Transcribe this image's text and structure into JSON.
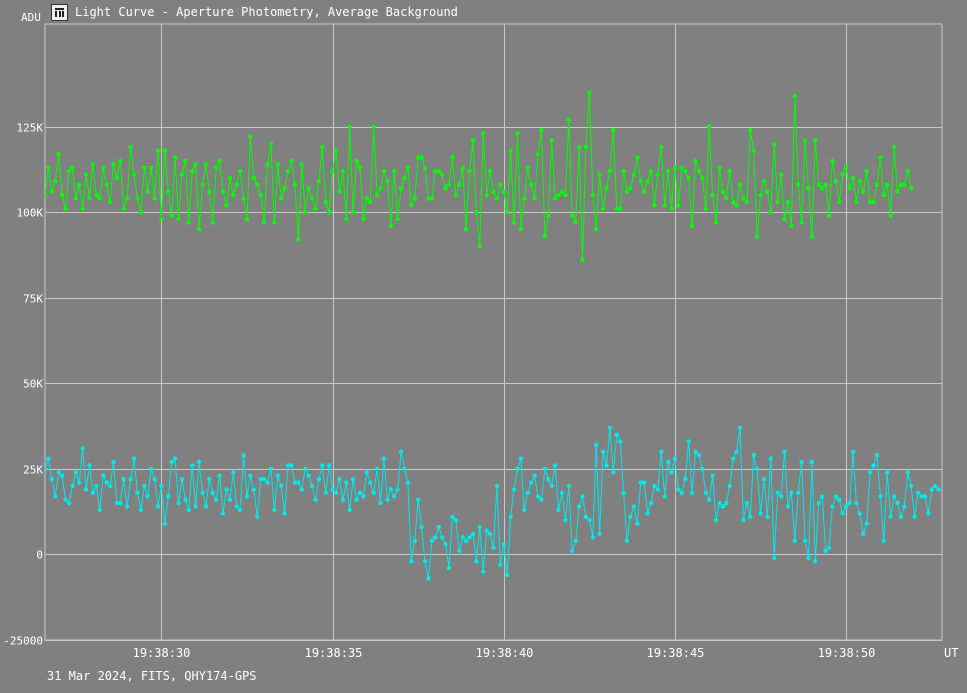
{
  "window": {
    "title": "Light Curve - Aperture Photometry, Average Background",
    "icon": "app-logo-icon"
  },
  "footer": {
    "info": "31 Mar 2024, FITS, QHY174-GPS"
  },
  "colors": {
    "background": "#808080",
    "grid": "#c8c8c8",
    "series_target": "#00ff00",
    "series_comparison": "#00e8e8"
  },
  "chart_data": {
    "type": "line",
    "title": "",
    "xlabel": "UT",
    "ylabel": "ADU",
    "grid": true,
    "xlim": [
      26.6,
      52.8
    ],
    "ylim": [
      -25000,
      155000
    ],
    "x_ticks": [
      30,
      35,
      40,
      45,
      50
    ],
    "x_tick_labels": [
      "19:38:30",
      "19:38:35",
      "19:38:40",
      "19:38:45",
      "19:38:50"
    ],
    "y_ticks": [
      -25000,
      0,
      25000,
      50000,
      75000,
      100000,
      125000
    ],
    "y_tick_labels": [
      "-25000",
      "0",
      "25K",
      "50K",
      "75K",
      "100K",
      "125K"
    ],
    "x_start": 26.6,
    "x_step": 0.1,
    "series": [
      {
        "color": "#00ff00",
        "values": [
          105000,
          113000,
          106000,
          109000,
          117000,
          105000,
          101000,
          112000,
          113000,
          104000,
          108000,
          101000,
          111000,
          104000,
          114000,
          105000,
          104000,
          113000,
          108000,
          103000,
          114000,
          110000,
          115000,
          101000,
          104000,
          119000,
          111000,
          104000,
          100000,
          113000,
          106000,
          113000,
          104000,
          118000,
          98000,
          118000,
          106000,
          99000,
          116000,
          98000,
          111000,
          115000,
          97000,
          112000,
          114000,
          95000,
          108000,
          114000,
          106000,
          97000,
          113000,
          115000,
          106000,
          102000,
          110000,
          105000,
          108000,
          112000,
          104000,
          98000,
          122000,
          110000,
          108000,
          105000,
          97000,
          114000,
          120000,
          97000,
          114000,
          104000,
          107000,
          112000,
          115000,
          108000,
          92000,
          114000,
          100000,
          107000,
          104000,
          101000,
          109000,
          119000,
          103000,
          100000,
          112000,
          118000,
          106000,
          112000,
          98000,
          125000,
          100000,
          115000,
          113000,
          98000,
          104000,
          103000,
          125000,
          105000,
          107000,
          112000,
          109000,
          96000,
          112000,
          98000,
          107000,
          110000,
          113000,
          102000,
          104000,
          116000,
          116000,
          113000,
          104000,
          104000,
          112000,
          112000,
          111000,
          107000,
          108000,
          116000,
          105000,
          108000,
          113000,
          95000,
          112000,
          121000,
          100000,
          90000,
          123000,
          105000,
          112000,
          106000,
          104000,
          108000,
          106000,
          100000,
          118000,
          97000,
          123000,
          95000,
          104000,
          113000,
          108000,
          104000,
          117000,
          124000,
          93000,
          99000,
          121000,
          104000,
          105000,
          106000,
          105000,
          127000,
          99000,
          97000,
          119000,
          86000,
          119000,
          135000,
          105000,
          95000,
          111000,
          101000,
          107000,
          112000,
          124000,
          101000,
          101000,
          112000,
          106000,
          107000,
          111000,
          116000,
          109000,
          106000,
          109000,
          112000,
          102000,
          111000,
          119000,
          102000,
          112000,
          101000,
          113000,
          102000,
          113000,
          112000,
          110000,
          96000,
          115000,
          112000,
          110000,
          101000,
          125000,
          105000,
          97000,
          113000,
          106000,
          104000,
          112000,
          103000,
          102000,
          108000,
          104000,
          103000,
          124000,
          118000,
          93000,
          105000,
          109000,
          106000,
          100000,
          120000,
          103000,
          111000,
          98000,
          103000,
          96000,
          134000,
          108000,
          97000,
          121000,
          107000,
          93000,
          121000,
          108000,
          107000,
          108000,
          99000,
          115000,
          109000,
          103000,
          111000,
          113000,
          107000,
          110000,
          103000,
          109000,
          106000,
          112000,
          103000,
          103000,
          108000,
          116000,
          105000,
          108000,
          99000,
          119000,
          106000,
          108000,
          108000,
          112000,
          107000
        ]
      },
      {
        "color": "#00e8e8",
        "values": [
          25000,
          28000,
          22000,
          17000,
          24000,
          23000,
          16000,
          15000,
          20000,
          24000,
          21000,
          31000,
          19000,
          26000,
          18000,
          20000,
          13000,
          23000,
          21000,
          20000,
          27000,
          15000,
          15000,
          22000,
          14000,
          22000,
          28000,
          18000,
          13000,
          20000,
          17000,
          25000,
          22000,
          14000,
          20000,
          9000,
          17000,
          27000,
          28000,
          15000,
          22000,
          16000,
          13000,
          26000,
          14000,
          27000,
          18000,
          14000,
          22000,
          18000,
          16000,
          23000,
          12000,
          19000,
          16000,
          24000,
          14000,
          13000,
          29000,
          17000,
          23000,
          19000,
          11000,
          22000,
          22000,
          21000,
          25000,
          13000,
          23000,
          20000,
          12000,
          26000,
          26000,
          21000,
          21000,
          19000,
          25000,
          23000,
          20000,
          16000,
          22000,
          26000,
          18000,
          26000,
          19000,
          18000,
          22000,
          16000,
          21000,
          13000,
          22000,
          16000,
          18000,
          17000,
          24000,
          21000,
          18000,
          25000,
          15000,
          28000,
          16000,
          19000,
          17000,
          19000,
          30000,
          25000,
          21000,
          -2000,
          4000,
          16000,
          8000,
          -2000,
          -7000,
          4000,
          5000,
          8000,
          5000,
          3000,
          -4000,
          11000,
          10000,
          1000,
          5000,
          4000,
          5000,
          6000,
          -2000,
          8000,
          -5000,
          7000,
          6000,
          2000,
          20000,
          -3000,
          3000,
          -6000,
          11000,
          19000,
          25000,
          28000,
          13000,
          18000,
          21000,
          23000,
          17000,
          16000,
          25000,
          22000,
          20000,
          26000,
          13000,
          18000,
          10000,
          20000,
          1000,
          4000,
          14000,
          17000,
          11000,
          10000,
          5000,
          32000,
          6000,
          30000,
          26000,
          37000,
          24000,
          35000,
          33000,
          18000,
          4000,
          11000,
          14000,
          9000,
          21000,
          21000,
          12000,
          15000,
          20000,
          19000,
          30000,
          17000,
          27000,
          24000,
          28000,
          19000,
          18000,
          22000,
          33000,
          18000,
          30000,
          29000,
          25000,
          18000,
          16000,
          23000,
          10000,
          15000,
          14000,
          15000,
          20000,
          28000,
          30000,
          37000,
          10000,
          15000,
          11000,
          29000,
          25000,
          12000,
          22000,
          11000,
          28000,
          -1000,
          18000,
          17000,
          30000,
          14000,
          18000,
          4000,
          18000,
          27000,
          4000,
          -1000,
          27000,
          -2000,
          15000,
          17000,
          1000,
          2000,
          14000,
          17000,
          16000,
          12000,
          14000,
          15000,
          30000,
          15000,
          12000,
          6000,
          9000,
          24000,
          26000,
          29000,
          17000,
          4000,
          24000,
          11000,
          17000,
          15000,
          11000,
          14000,
          24000,
          20000,
          11000,
          18000,
          17000,
          17000,
          12000,
          19000,
          20000,
          19000
        ]
      }
    ]
  }
}
